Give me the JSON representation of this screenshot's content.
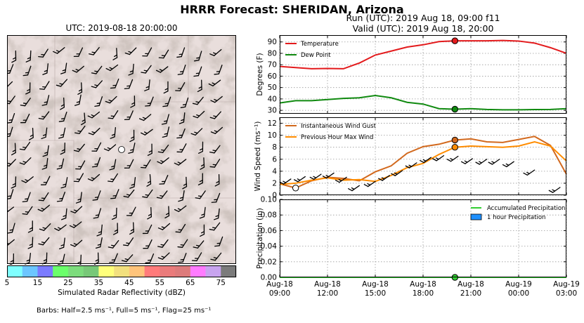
{
  "header": {
    "title": "HRRR Forecast: SHERIDAN, Arizona",
    "map_title": "UTC: 2019-08-18 20:00:00",
    "run_line": "Run (UTC): 2019 Aug 18, 09:00 f11",
    "valid_line": "Valid (UTC): 2019 Aug 18, 20:00"
  },
  "colorbar": {
    "label": "Simulated Radar Reflectivity (dBZ)",
    "ticks": [
      "5",
      "15",
      "25",
      "35",
      "45",
      "55",
      "65",
      "75"
    ],
    "colors": [
      "#7fffff",
      "#6cc6ff",
      "#7b7bff",
      "#6bff6b",
      "#7ddc7d",
      "#78c878",
      "#ffff7b",
      "#f2e07e",
      "#ffc47b",
      "#ff7b7b",
      "#ea7b7b",
      "#dd7b7b",
      "#ff7bff",
      "#c8a4ef",
      "#7b7b7b"
    ]
  },
  "barb_note": "Barbs: Half=2.5 ms⁻¹, Full=5 ms⁻¹, Flag=25 ms⁻¹",
  "chart_data": [
    {
      "type": "line",
      "panel": "temperature",
      "ylabel": "Degrees (F)",
      "ylim": [
        27,
        96
      ],
      "yticks": [
        "30",
        "40",
        "50",
        "60",
        "70",
        "80",
        "90"
      ],
      "x": [
        0,
        1,
        2,
        3,
        4,
        5,
        6,
        7,
        8,
        9,
        10,
        11,
        12,
        13,
        14,
        15,
        16,
        17,
        18
      ],
      "series": [
        {
          "name": "Temperature",
          "color": "#e31a1c",
          "values": [
            68.5,
            67.5,
            66.5,
            66.7,
            66.5,
            71.5,
            78.5,
            82,
            85.5,
            87.5,
            90.3,
            91,
            91,
            91,
            91.3,
            90.8,
            89,
            85,
            80
          ]
        },
        {
          "name": "Dew Point",
          "color": "#108a10",
          "values": [
            36.5,
            38.5,
            38.5,
            39.5,
            40.5,
            41,
            43,
            41,
            37,
            35.5,
            31.5,
            31,
            31.5,
            30.8,
            30.5,
            30.5,
            30.7,
            30.8,
            31.5
          ]
        }
      ],
      "markers": [
        {
          "x": 11,
          "y": 91,
          "color": "#e31a1c"
        },
        {
          "x": 11,
          "y": 31,
          "color": "#108a10"
        }
      ],
      "legend_position": "top-left"
    },
    {
      "type": "line",
      "panel": "wind",
      "ylabel": "Wind Speed  (ms⁻¹)",
      "ylim": [
        0,
        13
      ],
      "yticks": [
        "0",
        "2",
        "4",
        "6",
        "8",
        "10",
        "12"
      ],
      "x": [
        0,
        1,
        2,
        3,
        4,
        5,
        6,
        7,
        8,
        9,
        10,
        11,
        12,
        13,
        14,
        15,
        16,
        17,
        18
      ],
      "series": [
        {
          "name": "Instantaneous Wind Gust",
          "color": "#d2691e",
          "values": [
            1.9,
            1.2,
            2.4,
            3.0,
            2.8,
            2.4,
            3.9,
            4.9,
            7.0,
            8.1,
            8.5,
            9.2,
            9.4,
            8.9,
            8.8,
            9.3,
            9.8,
            8.3,
            3.5
          ]
        },
        {
          "name": "Previous Hour Max Wind",
          "color": "#ff8c00",
          "values": [
            1.8,
            2.0,
            2.5,
            2.9,
            2.5,
            2.6,
            2.3,
            3.3,
            4.6,
            5.3,
            6.8,
            8.0,
            8.2,
            8.1,
            8.0,
            8.2,
            8.9,
            8.2,
            5.7
          ]
        }
      ],
      "markers": [
        {
          "x": 1,
          "y": 1.2,
          "color": "#ffffff"
        },
        {
          "x": 11,
          "y": 9.2,
          "color": "#d2691e"
        },
        {
          "x": 11,
          "y": 8.0,
          "color": "#ff8c00"
        }
      ],
      "barbs": [
        {
          "x": 0.7,
          "y": 2.7
        },
        {
          "x": 1.6,
          "y": 3.1
        },
        {
          "x": 2.6,
          "y": 3.5
        },
        {
          "x": 3.4,
          "y": 3.7
        },
        {
          "x": 4.2,
          "y": 3.0
        },
        {
          "x": 5.0,
          "y": 1.6
        },
        {
          "x": 6.0,
          "y": 2.3
        },
        {
          "x": 6.9,
          "y": 3.3
        },
        {
          "x": 7.7,
          "y": 4.1
        },
        {
          "x": 8.6,
          "y": 5.4
        },
        {
          "x": 9.5,
          "y": 6.3
        },
        {
          "x": 10.3,
          "y": 6.6
        },
        {
          "x": 11.2,
          "y": 6.5
        },
        {
          "x": 12.1,
          "y": 6.1
        },
        {
          "x": 13.0,
          "y": 6.0
        },
        {
          "x": 13.8,
          "y": 6.0
        },
        {
          "x": 14.7,
          "y": 5.6
        },
        {
          "x": 16.0,
          "y": 4.2
        },
        {
          "x": 17.6,
          "y": 1.3
        }
      ],
      "legend_position": "top-left"
    },
    {
      "type": "line",
      "panel": "precipitation",
      "ylabel": "Precipitation (in)",
      "ylim": [
        0,
        0.1
      ],
      "yticks": [
        "0.00",
        "0.02",
        "0.04",
        "0.06",
        "0.08",
        "0.10"
      ],
      "x": [
        0,
        1,
        2,
        3,
        4,
        5,
        6,
        7,
        8,
        9,
        10,
        11,
        12,
        13,
        14,
        15,
        16,
        17,
        18
      ],
      "series": [
        {
          "name": "Accumulated Precipitation",
          "color": "#32cd32",
          "values": [
            0,
            0,
            0,
            0,
            0,
            0,
            0,
            0,
            0,
            0,
            0,
            0,
            0,
            0,
            0,
            0,
            0,
            0,
            0
          ]
        },
        {
          "name": "1 hour Precipitation",
          "color": "#1e90ff",
          "values": [
            0,
            0,
            0,
            0,
            0,
            0,
            0,
            0,
            0,
            0,
            0,
            0,
            0,
            0,
            0,
            0,
            0,
            0,
            0
          ]
        }
      ],
      "markers": [
        {
          "x": 11,
          "y": 0,
          "color": "#32cd32"
        }
      ],
      "xticks": [
        {
          "x": 0,
          "line1": "Aug-18",
          "line2": "09:00"
        },
        {
          "x": 3,
          "line1": "Aug-18",
          "line2": "12:00"
        },
        {
          "x": 6,
          "line1": "Aug-18",
          "line2": "15:00"
        },
        {
          "x": 9,
          "line1": "Aug-18",
          "line2": "18:00"
        },
        {
          "x": 12,
          "line1": "Aug-18",
          "line2": "21:00"
        },
        {
          "x": 15,
          "line1": "Aug-19",
          "line2": "00:00"
        },
        {
          "x": 18,
          "line1": "Aug-19",
          "line2": "03:00"
        }
      ],
      "legend_position": "top-right"
    }
  ]
}
